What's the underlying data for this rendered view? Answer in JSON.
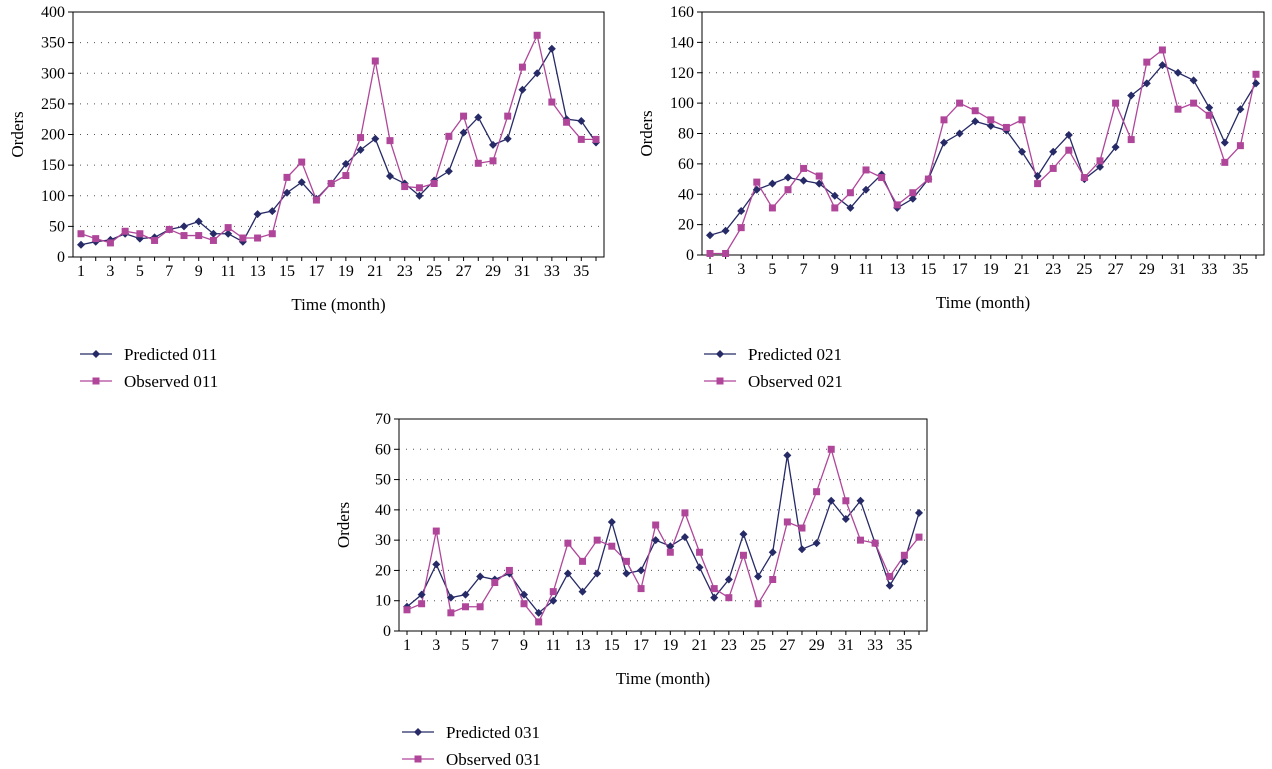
{
  "chart_data": [
    {
      "type": "line",
      "xlabel": "Time (month)",
      "ylabel": "Orders",
      "ylim": [
        0,
        400
      ],
      "yticks": [
        0,
        50,
        100,
        150,
        200,
        250,
        300,
        350,
        400
      ],
      "xlim": [
        1,
        36
      ],
      "xticks": [
        1,
        3,
        5,
        7,
        9,
        11,
        13,
        15,
        17,
        19,
        21,
        23,
        25,
        27,
        29,
        31,
        33,
        35
      ],
      "grid": "horizontal dotted",
      "legend_position": "bottom-left",
      "x": [
        1,
        2,
        3,
        4,
        5,
        6,
        7,
        8,
        9,
        10,
        11,
        12,
        13,
        14,
        15,
        16,
        17,
        18,
        19,
        20,
        21,
        22,
        23,
        24,
        25,
        26,
        27,
        28,
        29,
        30,
        31,
        32,
        33,
        34,
        35,
        36
      ],
      "series": [
        {
          "name": "Predicted 011",
          "color": "#262a66",
          "marker": "diamond",
          "values": [
            20,
            25,
            28,
            38,
            30,
            32,
            45,
            50,
            58,
            38,
            38,
            25,
            70,
            75,
            105,
            122,
            95,
            120,
            152,
            175,
            193,
            132,
            120,
            100,
            125,
            140,
            203,
            228,
            183,
            193,
            273,
            300,
            340,
            225,
            222,
            187
          ]
        },
        {
          "name": "Observed 011",
          "color": "#b0469a",
          "marker": "square",
          "values": [
            38,
            30,
            23,
            42,
            38,
            27,
            45,
            35,
            35,
            27,
            48,
            31,
            31,
            38,
            130,
            155,
            93,
            120,
            133,
            195,
            320,
            190,
            115,
            113,
            120,
            197,
            230,
            153,
            157,
            230,
            310,
            362,
            253,
            220,
            192,
            192
          ]
        }
      ]
    },
    {
      "type": "line",
      "xlabel": "Time (month)",
      "ylabel": "Orders",
      "ylim": [
        0,
        160
      ],
      "yticks": [
        0,
        20,
        40,
        60,
        80,
        100,
        120,
        140,
        160
      ],
      "xlim": [
        1,
        36
      ],
      "xticks": [
        1,
        3,
        5,
        7,
        9,
        11,
        13,
        15,
        17,
        19,
        21,
        23,
        25,
        27,
        29,
        31,
        33,
        35
      ],
      "grid": "horizontal dotted",
      "legend_position": "bottom-left",
      "x": [
        1,
        2,
        3,
        4,
        5,
        6,
        7,
        8,
        9,
        10,
        11,
        12,
        13,
        14,
        15,
        16,
        17,
        18,
        19,
        20,
        21,
        22,
        23,
        24,
        25,
        26,
        27,
        28,
        29,
        30,
        31,
        32,
        33,
        34,
        35,
        36
      ],
      "series": [
        {
          "name": "Predicted 021",
          "color": "#262a66",
          "marker": "diamond",
          "values": [
            13,
            16,
            29,
            43,
            47,
            51,
            49,
            47,
            39,
            31,
            43,
            53,
            31,
            37,
            50,
            74,
            80,
            88,
            85,
            82,
            68,
            52,
            68,
            79,
            50,
            58,
            71,
            105,
            113,
            125,
            120,
            115,
            97,
            74,
            96,
            113
          ]
        },
        {
          "name": "Observed 021",
          "color": "#b0469a",
          "marker": "square",
          "values": [
            1,
            1,
            18,
            48,
            31,
            43,
            57,
            52,
            31,
            41,
            56,
            51,
            33,
            41,
            50,
            89,
            100,
            95,
            89,
            84,
            89,
            47,
            57,
            69,
            51,
            62,
            100,
            76,
            127,
            135,
            96,
            100,
            92,
            61,
            72,
            119
          ]
        }
      ]
    },
    {
      "type": "line",
      "xlabel": "Time (month)",
      "ylabel": "Orders",
      "ylim": [
        0,
        70
      ],
      "yticks": [
        0,
        10,
        20,
        30,
        40,
        50,
        60,
        70
      ],
      "xlim": [
        1,
        36
      ],
      "xticks": [
        1,
        3,
        5,
        7,
        9,
        11,
        13,
        15,
        17,
        19,
        21,
        23,
        25,
        27,
        29,
        31,
        33,
        35
      ],
      "grid": "horizontal dotted",
      "legend_position": "bottom-left",
      "x": [
        1,
        2,
        3,
        4,
        5,
        6,
        7,
        8,
        9,
        10,
        11,
        12,
        13,
        14,
        15,
        16,
        17,
        18,
        19,
        20,
        21,
        22,
        23,
        24,
        25,
        26,
        27,
        28,
        29,
        30,
        31,
        32,
        33,
        34,
        35,
        36
      ],
      "series": [
        {
          "name": "Predicted 031",
          "color": "#262a66",
          "marker": "diamond",
          "values": [
            8,
            12,
            22,
            11,
            12,
            18,
            17,
            19,
            12,
            6,
            10,
            19,
            13,
            19,
            36,
            19,
            20,
            30,
            28,
            31,
            21,
            11,
            17,
            32,
            18,
            26,
            58,
            27,
            29,
            43,
            37,
            43,
            29,
            15,
            23,
            39
          ]
        },
        {
          "name": "Observed 031",
          "color": "#b0469a",
          "marker": "square",
          "values": [
            7,
            9,
            33,
            6,
            8,
            8,
            16,
            20,
            9,
            3,
            13,
            29,
            23,
            30,
            28,
            23,
            14,
            35,
            26,
            39,
            26,
            14,
            11,
            25,
            9,
            17,
            36,
            34,
            46,
            60,
            43,
            30,
            29,
            18,
            25,
            31
          ]
        }
      ]
    }
  ]
}
